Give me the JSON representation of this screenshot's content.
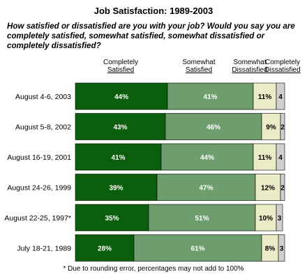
{
  "colors": {
    "completely_satisfied": "#0b5e0b",
    "somewhat_satisfied": "#6e9e6e",
    "somewhat_dissatisfied": "#ecebc7",
    "completely_dissatisfied": "#d0d0d0"
  },
  "chart_data": {
    "type": "bar",
    "orientation": "horizontal",
    "stacked": true,
    "title": "Job Satisfaction: 1989-2003",
    "subtitle": "How satisfied or dissatisfied are you with your job? Would you say you are completely satisfied, somewhat satisfied, somewhat dissatisfied or completely dissatisfied?",
    "categories": [
      "August 4-6, 2003",
      "August 5-8, 2002",
      "August 16-19, 2001",
      "August 24-26, 1999",
      "August 22-25, 1997*",
      "July 18-21, 1989"
    ],
    "series": [
      {
        "name": "Completely Satisfied",
        "name_lines": [
          "Completely",
          "Satisfied"
        ],
        "values": [
          44,
          43,
          41,
          39,
          35,
          28
        ]
      },
      {
        "name": "Somewhat Satisfied",
        "name_lines": [
          "Somewhat",
          "Satisfied"
        ],
        "values": [
          41,
          46,
          44,
          47,
          51,
          61
        ]
      },
      {
        "name": "Somewhat Dissatisfied",
        "name_lines": [
          "Somewhat",
          "Dissatisfied"
        ],
        "values": [
          11,
          9,
          11,
          12,
          10,
          8
        ]
      },
      {
        "name": "Completely Dissatisfied",
        "name_lines": [
          "Completely",
          "Dissatisfied"
        ],
        "values": [
          4,
          2,
          4,
          2,
          3,
          3
        ]
      }
    ],
    "xlim": [
      0,
      100
    ],
    "grid": false,
    "legend": "top",
    "footnote": "* Due to rounding error, percentages may not add to 100%"
  }
}
